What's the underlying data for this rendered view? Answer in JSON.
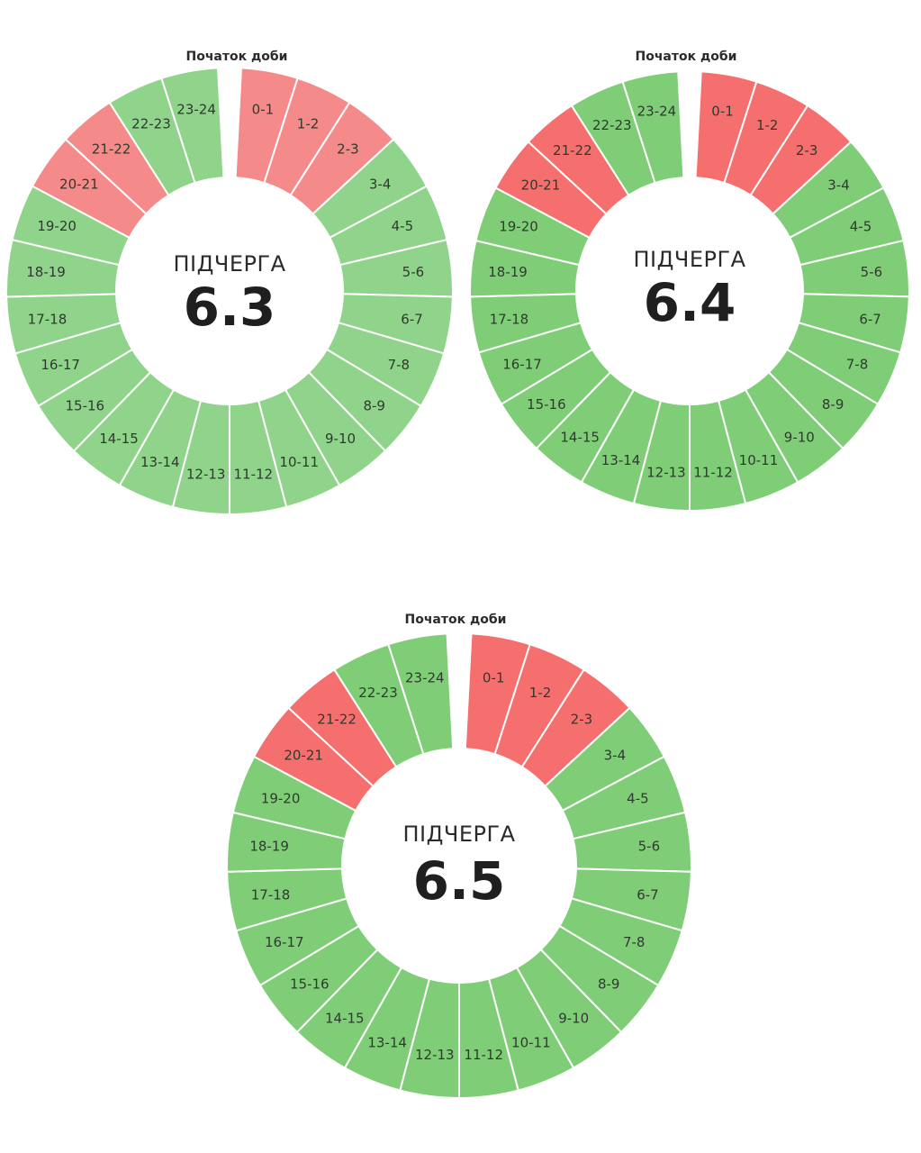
{
  "chart_data": [
    {
      "type": "pie",
      "variant": "donut",
      "top_label": "Початок доби",
      "center_caption": "ПІДЧЕРГА",
      "center_value": "6.3",
      "categories": [
        "0-1",
        "1-2",
        "2-3",
        "3-4",
        "4-5",
        "5-6",
        "6-7",
        "7-8",
        "8-9",
        "9-10",
        "10-11",
        "11-12",
        "12-13",
        "13-14",
        "14-15",
        "15-16",
        "16-17",
        "17-18",
        "18-19",
        "19-20",
        "20-21",
        "21-22",
        "22-23",
        "23-24"
      ],
      "status": [
        "off",
        "off",
        "off",
        "on",
        "on",
        "on",
        "on",
        "on",
        "on",
        "on",
        "on",
        "on",
        "on",
        "on",
        "on",
        "on",
        "on",
        "on",
        "on",
        "on",
        "off",
        "off",
        "on",
        "on"
      ],
      "colors": {
        "on": "#8fd48a",
        "off": "#f58a8a"
      }
    },
    {
      "type": "pie",
      "variant": "donut",
      "top_label": "Початок доби",
      "center_caption": "ПІДЧЕРГА",
      "center_value": "6.4",
      "categories": [
        "0-1",
        "1-2",
        "2-3",
        "3-4",
        "4-5",
        "5-6",
        "6-7",
        "7-8",
        "8-9",
        "9-10",
        "10-11",
        "11-12",
        "12-13",
        "13-14",
        "14-15",
        "15-16",
        "16-17",
        "17-18",
        "18-19",
        "19-20",
        "20-21",
        "21-22",
        "22-23",
        "23-24"
      ],
      "status": [
        "off",
        "off",
        "off",
        "on",
        "on",
        "on",
        "on",
        "on",
        "on",
        "on",
        "on",
        "on",
        "on",
        "on",
        "on",
        "on",
        "on",
        "on",
        "on",
        "on",
        "off",
        "off",
        "on",
        "on"
      ],
      "colors": {
        "on": "#7fce77",
        "off": "#f56f6f"
      }
    },
    {
      "type": "pie",
      "variant": "donut",
      "top_label": "Початок доби",
      "center_caption": "ПІДЧЕРГА",
      "center_value": "6.5",
      "categories": [
        "0-1",
        "1-2",
        "2-3",
        "3-4",
        "4-5",
        "5-6",
        "6-7",
        "7-8",
        "8-9",
        "9-10",
        "10-11",
        "11-12",
        "12-13",
        "13-14",
        "14-15",
        "15-16",
        "16-17",
        "17-18",
        "18-19",
        "19-20",
        "20-21",
        "21-22",
        "22-23",
        "23-24"
      ],
      "status": [
        "off",
        "off",
        "off",
        "on",
        "on",
        "on",
        "on",
        "on",
        "on",
        "on",
        "on",
        "on",
        "on",
        "on",
        "on",
        "on",
        "on",
        "on",
        "on",
        "on",
        "off",
        "off",
        "on",
        "on"
      ],
      "colors": {
        "on": "#7fce77",
        "off": "#f56f6f"
      }
    }
  ]
}
